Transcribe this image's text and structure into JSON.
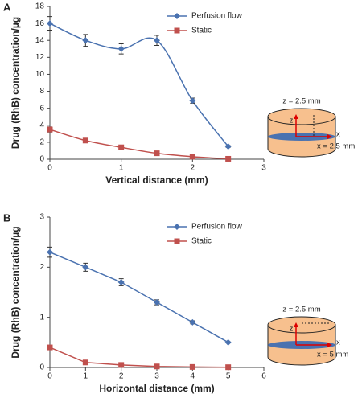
{
  "chart_data": [
    {
      "type": "line",
      "panel_label": "A",
      "x_label": "Vertical distance (mm)",
      "y_label": "Drug (RhB) concentration/µg",
      "x": [
        0,
        0.5,
        1,
        1.5,
        2,
        2.5
      ],
      "series": [
        {
          "name": "Perfusion flow",
          "color": "#4a72b0",
          "marker": "diamond",
          "values": [
            16,
            14,
            13,
            14,
            6.9,
            1.5
          ],
          "errors": [
            0.8,
            0.7,
            0.6,
            0.6,
            0.3,
            0.1
          ]
        },
        {
          "name": "Static",
          "color": "#c0504d",
          "marker": "square",
          "values": [
            3.5,
            2.2,
            1.4,
            0.7,
            0.3,
            0.05
          ],
          "errors": [
            0.3,
            0.15,
            0.1,
            0.05,
            0.05,
            0.02
          ]
        }
      ],
      "xlim": [
        0,
        3
      ],
      "xticks": [
        0,
        1,
        2,
        3
      ],
      "ylim": [
        0,
        18
      ],
      "yticks": [
        0,
        2,
        4,
        6,
        8,
        10,
        12,
        14,
        16,
        18
      ],
      "smooth": true,
      "legend": "upper right",
      "annotations": [
        "z = 2.5 mm",
        "z",
        "x",
        "x = 2.5 mm"
      ]
    },
    {
      "type": "line",
      "panel_label": "B",
      "x_label": "Horizontal distance (mm)",
      "y_label": "Drug (RhB) concentration/µg",
      "x": [
        0,
        1,
        2,
        3,
        4,
        5
      ],
      "series": [
        {
          "name": "Perfusion flow",
          "color": "#4a72b0",
          "marker": "diamond",
          "values": [
            2.3,
            2.0,
            1.7,
            1.3,
            0.9,
            0.5
          ],
          "errors": [
            0.1,
            0.08,
            0.07,
            0.05,
            0.03,
            0.01
          ]
        },
        {
          "name": "Static",
          "color": "#c0504d",
          "marker": "square",
          "values": [
            0.4,
            0.1,
            0.05,
            0.02,
            0.01,
            0.005
          ],
          "errors": [
            0.03,
            0.01,
            0.01,
            0.005,
            0.005,
            0.002
          ]
        }
      ],
      "xlim": [
        0,
        6
      ],
      "xticks": [
        0,
        1,
        2,
        3,
        4,
        5,
        6
      ],
      "ylim": [
        0,
        3
      ],
      "yticks": [
        0,
        1,
        2,
        3
      ],
      "smooth": false,
      "legend": "upper right",
      "annotations": [
        "z = 2.5 mm",
        "z",
        "x",
        "x = 5 mm"
      ]
    }
  ]
}
